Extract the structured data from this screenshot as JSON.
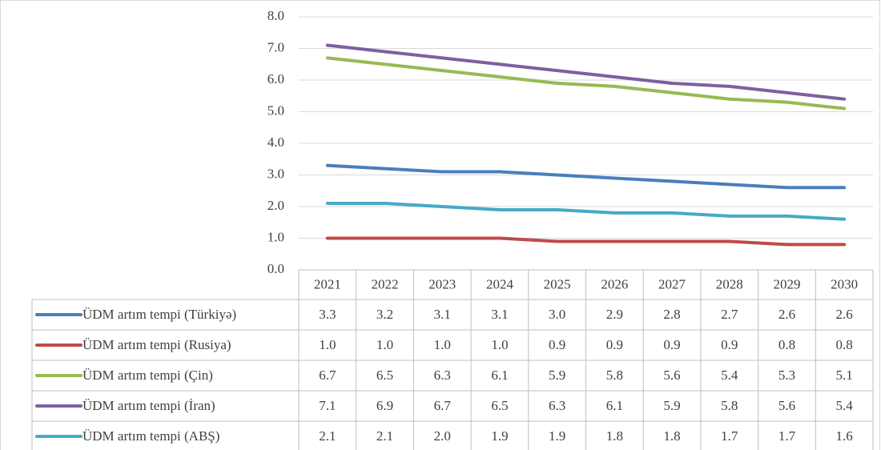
{
  "chart_data": {
    "type": "line",
    "categories": [
      "2021",
      "2022",
      "2023",
      "2024",
      "2025",
      "2026",
      "2027",
      "2028",
      "2029",
      "2030"
    ],
    "series": [
      {
        "name": "ÜDM artım tempi (Türkiyə)",
        "color": "#4a7ebb",
        "values": [
          3.3,
          3.2,
          3.1,
          3.1,
          3.0,
          2.9,
          2.8,
          2.7,
          2.6,
          2.6
        ],
        "value_labels": [
          "3.3",
          "3.2",
          "3.1",
          "3.1",
          "3.0",
          "2.9",
          "2.8",
          "2.7",
          "2.6",
          "2.6"
        ]
      },
      {
        "name": "ÜDM artım tempi (Rusiya)",
        "color": "#be4b48",
        "values": [
          1.0,
          1.0,
          1.0,
          1.0,
          0.9,
          0.9,
          0.9,
          0.9,
          0.8,
          0.8
        ],
        "value_labels": [
          "1.0",
          "1.0",
          "1.0",
          "1.0",
          "0.9",
          "0.9",
          "0.9",
          "0.9",
          "0.8",
          "0.8"
        ]
      },
      {
        "name": "ÜDM artım tempi (Çin)",
        "color": "#98b954",
        "values": [
          6.7,
          6.5,
          6.3,
          6.1,
          5.9,
          5.8,
          5.6,
          5.4,
          5.3,
          5.1
        ],
        "value_labels": [
          "6.7",
          "6.5",
          "6.3",
          "6.1",
          "5.9",
          "5.8",
          "5.6",
          "5.4",
          "5.3",
          "5.1"
        ]
      },
      {
        "name": "ÜDM artım tempi (İran)",
        "color": "#7d60a0",
        "values": [
          7.1,
          6.9,
          6.7,
          6.5,
          6.3,
          6.1,
          5.9,
          5.8,
          5.6,
          5.4
        ],
        "value_labels": [
          "7.1",
          "6.9",
          "6.7",
          "6.5",
          "6.3",
          "6.1",
          "5.9",
          "5.8",
          "5.6",
          "5.4"
        ]
      },
      {
        "name": "ÜDM artım tempi (ABŞ)",
        "color": "#46aac5",
        "values": [
          2.1,
          2.1,
          2.0,
          1.9,
          1.9,
          1.8,
          1.8,
          1.7,
          1.7,
          1.6
        ],
        "value_labels": [
          "2.1",
          "2.1",
          "2.0",
          "1.9",
          "1.9",
          "1.8",
          "1.8",
          "1.7",
          "1.7",
          "1.6"
        ]
      }
    ],
    "ylim": [
      0,
      8
    ],
    "yticks": [
      {
        "value": 0,
        "label": "0.0"
      },
      {
        "value": 1,
        "label": "1.0"
      },
      {
        "value": 2,
        "label": "2.0"
      },
      {
        "value": 3,
        "label": "3.0"
      },
      {
        "value": 4,
        "label": "4.0"
      },
      {
        "value": 5,
        "label": "5.0"
      },
      {
        "value": 6,
        "label": "6.0"
      },
      {
        "value": 7,
        "label": "7.0"
      },
      {
        "value": 8,
        "label": "8.0"
      }
    ],
    "grid": true
  }
}
